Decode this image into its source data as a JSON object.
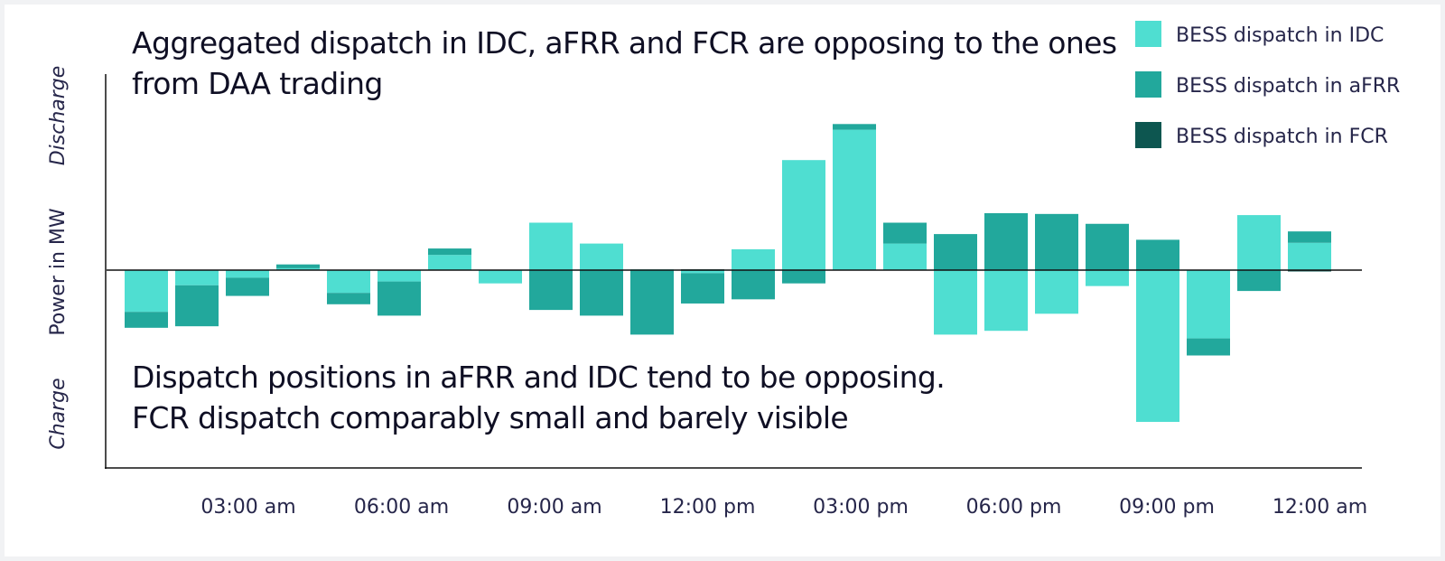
{
  "chart_data": {
    "type": "bar",
    "stacked": true,
    "title": "Aggregated dispatch in IDC, aFRR and FCR are opposing to the ones from DAA trading",
    "annotation": [
      "Dispatch positions in aFRR and IDC tend to be opposing.",
      "FCR dispatch comparably small and barely visible"
    ],
    "ylabel": "Power in MW",
    "ylabel_top": "Discharge",
    "ylabel_bottom": "Charge",
    "ylim": [
      -5.1,
      5.1
    ],
    "grid": false,
    "legend_position": "top-right",
    "x_ticks": [
      "03:00 am",
      "06:00 am",
      "09:00 am",
      "12:00 pm",
      "03:00 pm",
      "06:00 pm",
      "09:00 pm",
      "12:00 am"
    ],
    "series": [
      {
        "name": "BESS dispatch in IDC",
        "color": "#4fded1",
        "values": [
          -1.1,
          -0.4,
          -0.2,
          0.05,
          -0.6,
          -0.3,
          0.4,
          -0.35,
          1.25,
          0.7,
          0.02,
          -0.08,
          0.55,
          2.9,
          3.7,
          0.7,
          -1.7,
          -1.6,
          -1.15,
          -0.42,
          -4.0,
          -1.8,
          1.45,
          0.72
        ]
      },
      {
        "name": "BESS dispatch in aFRR",
        "color": "#22a89c",
        "values": [
          -0.42,
          -1.08,
          -0.48,
          0.1,
          -0.3,
          -0.9,
          0.17,
          0,
          -1.05,
          -1.2,
          -1.7,
          -0.8,
          -0.77,
          -0.35,
          0.15,
          0.55,
          0.95,
          1.5,
          1.48,
          1.22,
          0.8,
          -0.45,
          -0.55,
          0.3
        ]
      },
      {
        "name": "BESS dispatch in FCR",
        "color": "#0d5650",
        "values": [
          0,
          0,
          0,
          0,
          0,
          0,
          0,
          0,
          0,
          0,
          0,
          0.02,
          0,
          0,
          0,
          0,
          0,
          0,
          0,
          0,
          0,
          0,
          0,
          -0.02
        ]
      }
    ]
  }
}
